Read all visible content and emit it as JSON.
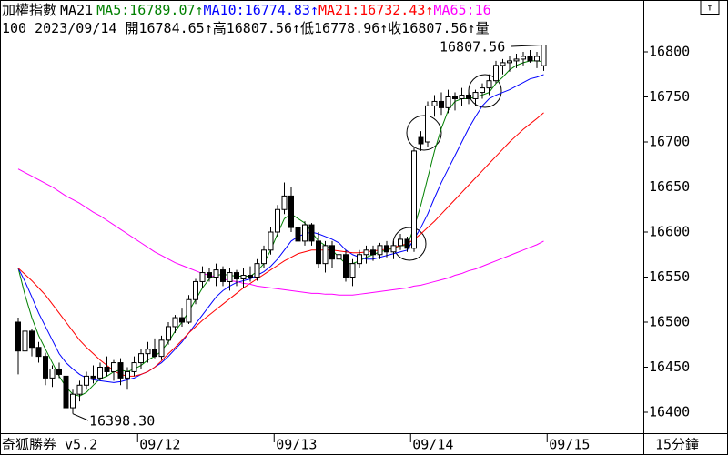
{
  "chart_data": {
    "type": "candlestick",
    "title": "加權指數",
    "indicator": "MA21",
    "info": "100 2023/09/14 開16784.65↑高16807.56↑低16778.96↑收16807.56↑量",
    "app_name": "奇狐勝券 v5.2",
    "interval": "15分鐘",
    "annotations": [
      "16807.56",
      "16398.30"
    ],
    "categories": [
      null,
      null,
      null,
      null,
      null,
      null,
      null,
      null,
      null,
      null,
      null,
      null,
      null,
      null,
      null,
      null,
      null,
      null,
      "09/12",
      null,
      null,
      null,
      null,
      null,
      null,
      null,
      null,
      null,
      null,
      null,
      null,
      null,
      null,
      null,
      null,
      null,
      null,
      null,
      "09/13",
      null,
      null,
      null,
      null,
      null,
      null,
      null,
      null,
      null,
      null,
      null,
      null,
      null,
      null,
      null,
      null,
      null,
      null,
      null,
      "09/14",
      null,
      null,
      null,
      null,
      null,
      null,
      null,
      null,
      null,
      null,
      null,
      null,
      null,
      null,
      null,
      null,
      null,
      null,
      null,
      "09/15"
    ],
    "open": [
      16500,
      16468,
      16490,
      16472,
      16462,
      16438,
      16448,
      16440,
      16405,
      16420,
      16430,
      16440,
      16438,
      16450,
      16445,
      16455,
      16438,
      16445,
      16455,
      16465,
      16470,
      16462,
      16480,
      16495,
      16505,
      16500,
      16525,
      16545,
      16555,
      16550,
      16558,
      16545,
      16555,
      16548,
      16552,
      16550,
      16565,
      16580,
      16600,
      16625,
      16640,
      16605,
      16590,
      16608,
      16590,
      16565,
      16585,
      16570,
      16575,
      16550,
      16565,
      16575,
      16580,
      16575,
      16585,
      16578,
      16585,
      16592,
      16582,
      16705,
      16700,
      16740,
      16745,
      16738,
      16750,
      16748,
      16752,
      16748,
      16755,
      16760,
      16768,
      16785,
      16788,
      16790,
      16792,
      16795,
      16790,
      16784.65,
      null
    ],
    "high": [
      16505,
      16495,
      16492,
      16478,
      16466,
      16452,
      16455,
      16442,
      16425,
      16435,
      16445,
      16452,
      16455,
      16462,
      16458,
      16460,
      16450,
      16462,
      16470,
      16478,
      16482,
      16485,
      16500,
      16508,
      16515,
      16530,
      16548,
      16562,
      16560,
      16565,
      16562,
      16560,
      16558,
      16560,
      16562,
      16570,
      16585,
      16605,
      16630,
      16655,
      16650,
      16615,
      16612,
      16610,
      16600,
      16590,
      16590,
      16585,
      16580,
      16570,
      16580,
      16585,
      16585,
      16588,
      16590,
      16590,
      16598,
      16595,
      16695,
      16712,
      16745,
      16752,
      16755,
      16758,
      16755,
      16760,
      16758,
      16758,
      16765,
      16775,
      16790,
      16792,
      16795,
      16798,
      16800,
      16802,
      16800,
      16807.56,
      null
    ],
    "low": [
      16442,
      16460,
      16462,
      16455,
      16430,
      16428,
      16438,
      16402,
      16398.3,
      16412,
      16425,
      16432,
      16435,
      16440,
      16435,
      16430,
      16425,
      16440,
      16448,
      16455,
      16460,
      16458,
      16475,
      16488,
      16495,
      16498,
      16520,
      16538,
      16545,
      16540,
      16540,
      16535,
      16540,
      16538,
      16545,
      16546,
      16560,
      16575,
      16595,
      16620,
      16600,
      16580,
      16585,
      16585,
      16560,
      16555,
      16560,
      16555,
      16545,
      16540,
      16560,
      16565,
      16568,
      16570,
      16572,
      16570,
      16580,
      16578,
      16578,
      16690,
      16695,
      16728,
      16730,
      16732,
      16735,
      16740,
      16742,
      16740,
      16748,
      16752,
      16765,
      16775,
      16778,
      16782,
      16785,
      16788,
      16782,
      16778.96,
      null
    ],
    "close": [
      16468,
      16490,
      16472,
      16462,
      16438,
      16448,
      16442,
      16405,
      16420,
      16430,
      16440,
      16438,
      16450,
      16445,
      16455,
      16438,
      16445,
      16455,
      16465,
      16470,
      16462,
      16480,
      16495,
      16505,
      16500,
      16525,
      16545,
      16555,
      16550,
      16558,
      16545,
      16555,
      16548,
      16552,
      16550,
      16565,
      16580,
      16600,
      16625,
      16640,
      16605,
      16590,
      16608,
      16590,
      16565,
      16585,
      16570,
      16575,
      16550,
      16565,
      16575,
      16580,
      16575,
      16585,
      16578,
      16585,
      16592,
      16582,
      16690,
      16698,
      16740,
      16745,
      16738,
      16750,
      16748,
      16752,
      16748,
      16755,
      16760,
      16768,
      16785,
      16788,
      16790,
      16792,
      16795,
      16790,
      16795,
      16807.56,
      null
    ],
    "series": [
      {
        "name": "MA5",
        "legend": "MA5:16789.07↑",
        "color": "#008000",
        "values": [
          16560,
          16530,
          16505,
          16485,
          16470,
          16455,
          16440,
          16428,
          16420,
          16418,
          16422,
          16430,
          16437,
          16440,
          16445,
          16447,
          16445,
          16448,
          16452,
          16458,
          16462,
          16468,
          16478,
          16490,
          16500,
          16512,
          16525,
          16538,
          16548,
          16552,
          16553,
          16552,
          16551,
          16551,
          16551,
          16556,
          16565,
          16580,
          16598,
          16615,
          16620,
          16615,
          16610,
          16600,
          16590,
          16585,
          16580,
          16572,
          16565,
          16565,
          16568,
          16572,
          16575,
          16578,
          16580,
          16582,
          16585,
          16585,
          16605,
          16630,
          16660,
          16690,
          16715,
          16735,
          16745,
          16748,
          16748,
          16750,
          16752,
          16755,
          16765,
          16772,
          16780,
          16785,
          16788,
          16790,
          16790,
          16789.07,
          null
        ]
      },
      {
        "name": "MA10",
        "legend": "MA10:16774.83↑",
        "color": "#0000ff",
        "values": [
          16560,
          16545,
          16528,
          16510,
          16495,
          16480,
          16465,
          16455,
          16448,
          16442,
          16438,
          16436,
          16435,
          16434,
          16433,
          16434,
          16436,
          16438,
          16442,
          16445,
          16450,
          16455,
          16462,
          16470,
          16478,
          16488,
          16498,
          16508,
          16518,
          16528,
          16535,
          16540,
          16544,
          16546,
          16548,
          16552,
          16556,
          16562,
          16570,
          16580,
          16590,
          16595,
          16598,
          16600,
          16598,
          16595,
          16592,
          16588,
          16580,
          16575,
          16572,
          16570,
          16570,
          16572,
          16574,
          16576,
          16578,
          16580,
          16592,
          16605,
          16620,
          16638,
          16655,
          16670,
          16685,
          16700,
          16715,
          16728,
          16740,
          16748,
          16752,
          16755,
          16758,
          16762,
          16766,
          16770,
          16772,
          16774.83,
          null
        ]
      },
      {
        "name": "MA21",
        "legend": "MA21:16732.43↑",
        "color": "#ff0000",
        "values": [
          16560,
          16553,
          16546,
          16538,
          16530,
          16520,
          16510,
          16500,
          16490,
          16480,
          16472,
          16465,
          16458,
          16452,
          16446,
          16442,
          16440,
          16440,
          16442,
          16445,
          16450,
          16457,
          16465,
          16472,
          16480,
          16488,
          16495,
          16502,
          16508,
          16514,
          16520,
          16526,
          16532,
          16538,
          16543,
          16548,
          16553,
          16558,
          16563,
          16568,
          16572,
          16576,
          16578,
          16580,
          16580,
          16580,
          16580,
          16579,
          16578,
          16577,
          16577,
          16578,
          16579,
          16580,
          16581,
          16583,
          16585,
          16587,
          16592,
          16598,
          16605,
          16612,
          16620,
          16628,
          16636,
          16644,
          16652,
          16660,
          16668,
          16676,
          16684,
          16692,
          16700,
          16707,
          16714,
          16720,
          16726,
          16732.43,
          null
        ]
      },
      {
        "name": "MA65",
        "legend": "MA65:16",
        "color": "#ff00ff",
        "values": [
          16670,
          16666,
          16662,
          16658,
          16654,
          16650,
          16645,
          16640,
          16636,
          16632,
          16627,
          16622,
          16618,
          16613,
          16608,
          16603,
          16598,
          16593,
          16588,
          16583,
          16578,
          16574,
          16570,
          16566,
          16563,
          16560,
          16557,
          16554,
          16552,
          16550,
          16548,
          16546,
          16545,
          16543,
          16542,
          16540,
          16539,
          16538,
          16537,
          16536,
          16535,
          16534,
          16533,
          16532,
          16532,
          16531,
          16531,
          16530,
          16530,
          16530,
          16531,
          16532,
          16533,
          16534,
          16535,
          16536,
          16537,
          16538,
          16540,
          16541,
          16543,
          16545,
          16547,
          16549,
          16552,
          16554,
          16557,
          16559,
          16562,
          16565,
          16568,
          16571,
          16574,
          16577,
          16580,
          16583,
          16586,
          16590,
          null
        ]
      }
    ],
    "ylim": [
      16380,
      16850
    ],
    "yticks": [
      16400,
      16450,
      16500,
      16550,
      16600,
      16650,
      16700,
      16750,
      16800
    ]
  }
}
